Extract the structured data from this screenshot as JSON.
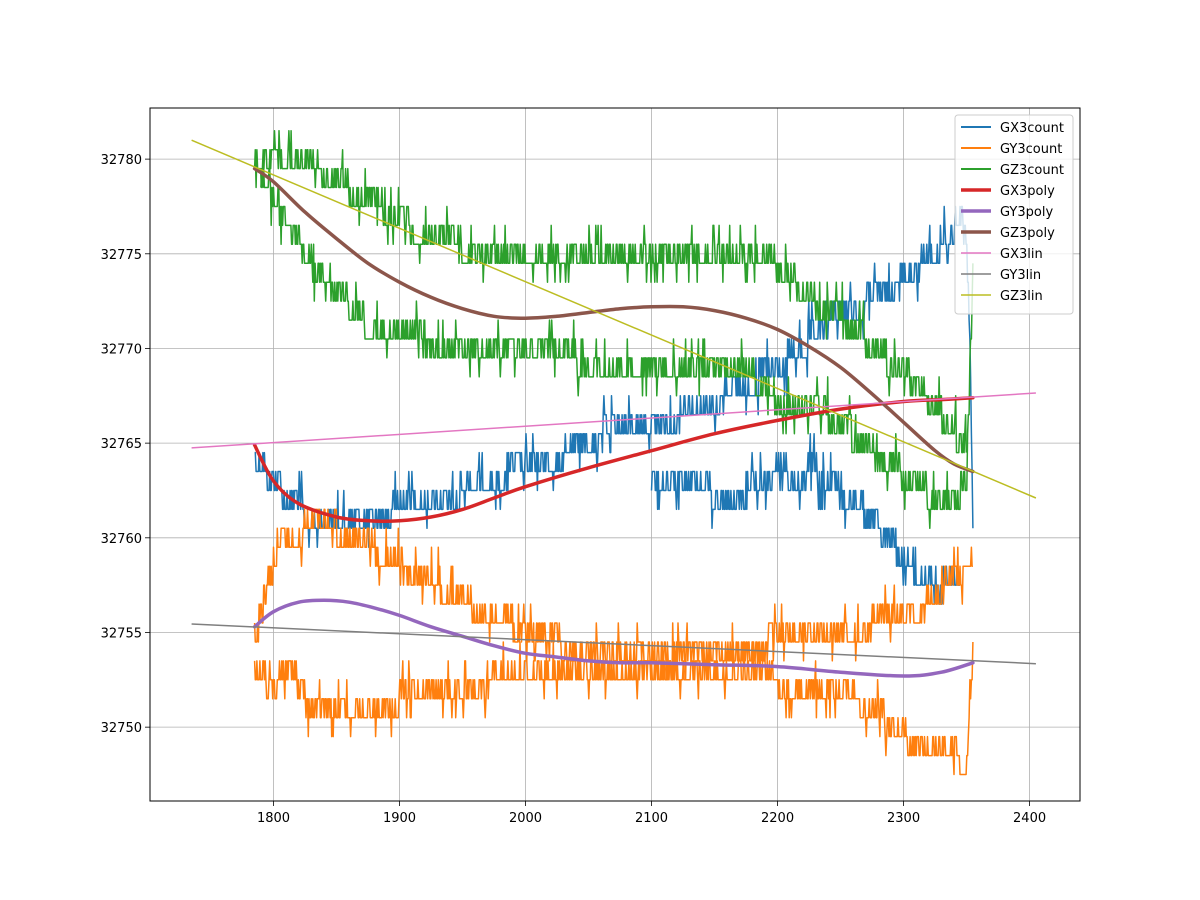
{
  "chart_data": {
    "type": "line",
    "title": "",
    "xlabel": "",
    "ylabel": "",
    "xlim": [
      1702,
      2440
    ],
    "ylim": [
      32746.1,
      32782.7
    ],
    "xticks": [
      1800,
      1900,
      2000,
      2100,
      2200,
      2300,
      2400
    ],
    "yticks": [
      32750,
      32755,
      32760,
      32765,
      32770,
      32775,
      32780
    ],
    "grid": true,
    "legend_position": "top-right",
    "series": [
      {
        "name": "GX3count",
        "color": "#1f77b4",
        "width": 2,
        "style": "noisy",
        "x": [
          1785,
          1790,
          1795,
          1810,
          1825,
          1835,
          1850,
          1860,
          1870,
          1880,
          1900,
          1920,
          1940,
          1960,
          1975,
          1990,
          2010,
          2030,
          2045,
          2060,
          2080,
          2100,
          2120,
          2140,
          2160,
          2180,
          2190,
          2200,
          2210,
          2220,
          2230,
          2245,
          2260,
          2275,
          2285,
          2295,
          2305,
          2315,
          2325,
          2335,
          2345,
          2350,
          2353,
          2355
        ],
        "y": [
          32764.5,
          32764.2,
          32763.2,
          32762.3,
          32761.4,
          32761.2,
          32761.1,
          32761.5,
          32761.1,
          32761.3,
          32761.6,
          32761.8,
          32762.3,
          32762.8,
          32763.2,
          32763.6,
          32764.0,
          32764.5,
          32765.0,
          32765.6,
          32766.1,
          32766.3,
          32766.5,
          32766.9,
          32767.6,
          32768.2,
          32768.8,
          32769.1,
          32769.6,
          32770.2,
          32771.0,
          32771.7,
          32772.2,
          32772.7,
          32773.1,
          32773.6,
          32774.2,
          32774.6,
          32775.2,
          32776.0,
          32777.0,
          32776.0,
          32770.0,
          32761.0
        ],
        "x2": [
          2100,
          2115,
          2130,
          2145,
          2165,
          2185,
          2200,
          2215,
          2230,
          2245,
          2260,
          2275,
          2285,
          2300,
          2315,
          2330,
          2345
        ],
        "y2": [
          32762.6,
          32762.6,
          32762.8,
          32762.6,
          32761.9,
          32763.1,
          32763.6,
          32763.4,
          32763.6,
          32762.8,
          32762.0,
          32761.1,
          32760.1,
          32759.1,
          32758.0,
          32757.3,
          32758.4
        ]
      },
      {
        "name": "GY3count",
        "color": "#ff7f0e",
        "width": 2,
        "style": "noisy",
        "x": [
          1785,
          1790,
          1795,
          1800,
          1805,
          1815,
          1830,
          1845,
          1860,
          1880,
          1900,
          1920,
          1940,
          1960,
          1980,
          2000,
          2030,
          2060,
          2090,
          2120,
          2150,
          2180,
          2200,
          2220,
          2240,
          2260,
          2280,
          2300,
          2320,
          2340,
          2350,
          2355
        ],
        "y": [
          32753.5,
          32753.0,
          32752.4,
          32752.2,
          32752.6,
          32752.9,
          32750.9,
          32750.6,
          32750.6,
          32751.0,
          32751.5,
          32751.7,
          32751.6,
          32752.2,
          32752.7,
          32753.1,
          32753.3,
          32753.1,
          32752.9,
          32752.6,
          32752.6,
          32752.5,
          32752.5,
          32752.2,
          32752.1,
          32751.7,
          32750.8,
          32749.6,
          32749.0,
          32748.9,
          32747.8,
          32755.0
        ],
        "x2": [
          1785,
          1795,
          1805,
          1815,
          1830,
          1850,
          1870,
          1900,
          1930,
          1960,
          1990,
          2020,
          2060,
          2100,
          2140,
          2180,
          2200,
          2230,
          2260,
          2290,
          2320,
          2340,
          2355
        ],
        "y2": [
          32754.5,
          32757.5,
          32759.5,
          32760.2,
          32760.7,
          32760.5,
          32760.0,
          32758.6,
          32757.6,
          32756.4,
          32755.5,
          32754.6,
          32754.1,
          32753.7,
          32753.6,
          32753.9,
          32754.9,
          32755.1,
          32755.4,
          32755.6,
          32756.6,
          32758.1,
          32759.0
        ]
      },
      {
        "name": "GZ3count",
        "color": "#2ca02c",
        "width": 2,
        "style": "noisy",
        "x": [
          1785,
          1795,
          1805,
          1815,
          1830,
          1845,
          1860,
          1875,
          1890,
          1905,
          1920,
          1940,
          1960,
          1980,
          2000,
          2020,
          2040,
          2060,
          2080,
          2100,
          2120,
          2140,
          2160,
          2180,
          2190,
          2200,
          2210,
          2220,
          2230,
          2240,
          2250,
          2260,
          2270,
          2280,
          2290,
          2300,
          2310,
          2320,
          2330,
          2340,
          2350,
          2355
        ],
        "y": [
          32779.8,
          32778.8,
          32777.5,
          32776.3,
          32774.5,
          32773.5,
          32772.5,
          32771.3,
          32770.5,
          32770.5,
          32770.5,
          32769.8,
          32769.6,
          32769.5,
          32769.6,
          32769.6,
          32769.5,
          32769.4,
          32769.3,
          32769.3,
          32769.3,
          32769.3,
          32769.1,
          32768.6,
          32767.8,
          32767.4,
          32767.2,
          32767.1,
          32766.8,
          32766.5,
          32766.0,
          32765.4,
          32764.8,
          32764.4,
          32764.0,
          32763.4,
          32762.9,
          32762.4,
          32762.2,
          32762.3,
          32762.7,
          32774.0
        ],
        "x2": [
          1790,
          1800,
          1815,
          1830,
          1850,
          1870,
          1890,
          1910,
          1930,
          1950,
          1970,
          1990,
          2010,
          2030,
          2050,
          2070,
          2090,
          2110,
          2130,
          2150,
          2170,
          2190,
          2200,
          2215,
          2230,
          2245,
          2260,
          2275,
          2290,
          2305,
          2320,
          2335,
          2350
        ],
        "y2": [
          32780.1,
          32780.6,
          32780.2,
          32779.8,
          32779.0,
          32778.0,
          32777.4,
          32776.4,
          32776.0,
          32775.4,
          32775.0,
          32774.6,
          32774.8,
          32774.7,
          32774.5,
          32774.6,
          32774.8,
          32774.6,
          32774.9,
          32775.4,
          32775.4,
          32775.0,
          32774.4,
          32773.5,
          32772.6,
          32771.9,
          32771.0,
          32770.2,
          32769.3,
          32768.5,
          32767.3,
          32766.1,
          32764.8
        ]
      },
      {
        "name": "GX3poly",
        "color": "#d62728",
        "width": 3.5,
        "style": "smooth",
        "x": [
          1785,
          1800,
          1820,
          1850,
          1875,
          1900,
          1925,
          1950,
          1975,
          2000,
          2050,
          2100,
          2150,
          2200,
          2250,
          2300,
          2330,
          2355
        ],
        "y": [
          32764.9,
          32763.0,
          32761.8,
          32761.1,
          32760.9,
          32760.9,
          32761.1,
          32761.5,
          32762.1,
          32762.7,
          32763.7,
          32764.6,
          32765.5,
          32766.2,
          32766.8,
          32767.2,
          32767.3,
          32767.4
        ]
      },
      {
        "name": "GY3poly",
        "color": "#9467bd",
        "width": 3.5,
        "style": "smooth",
        "x": [
          1785,
          1800,
          1820,
          1840,
          1860,
          1880,
          1900,
          1925,
          1950,
          1975,
          2000,
          2025,
          2050,
          2075,
          2100,
          2150,
          2200,
          2250,
          2300,
          2330,
          2355
        ],
        "y": [
          32755.3,
          32756.1,
          32756.6,
          32756.7,
          32756.6,
          32756.3,
          32755.9,
          32755.3,
          32754.8,
          32754.3,
          32753.9,
          32753.7,
          32753.5,
          32753.4,
          32753.4,
          32753.3,
          32753.2,
          32752.9,
          32752.7,
          32752.9,
          32753.4
        ]
      },
      {
        "name": "GZ3poly",
        "color": "#8c564b",
        "width": 3.5,
        "style": "smooth",
        "x": [
          1785,
          1800,
          1825,
          1850,
          1875,
          1900,
          1925,
          1950,
          1975,
          2000,
          2025,
          2050,
          2075,
          2100,
          2125,
          2150,
          2175,
          2200,
          2225,
          2250,
          2275,
          2300,
          2325,
          2340,
          2355
        ],
        "y": [
          32779.5,
          32778.8,
          32777.2,
          32775.8,
          32774.5,
          32773.5,
          32772.7,
          32772.1,
          32771.7,
          32771.6,
          32771.7,
          32771.9,
          32772.1,
          32772.2,
          32772.2,
          32772.0,
          32771.6,
          32771.0,
          32770.1,
          32769.0,
          32767.6,
          32766.1,
          32764.6,
          32763.9,
          32763.5
        ]
      },
      {
        "name": "GX3lin",
        "color": "#e377c2",
        "width": 1.5,
        "style": "straight",
        "x": [
          1735,
          2405
        ],
        "y": [
          32764.75,
          32767.65
        ]
      },
      {
        "name": "GY3lin",
        "color": "#7f7f7f",
        "width": 1.5,
        "style": "straight",
        "x": [
          1735,
          2405
        ],
        "y": [
          32755.45,
          32753.35
        ]
      },
      {
        "name": "GZ3lin",
        "color": "#bcbd22",
        "width": 1.5,
        "style": "straight",
        "x": [
          1735,
          2405
        ],
        "y": [
          32781.0,
          32762.1
        ]
      }
    ]
  }
}
